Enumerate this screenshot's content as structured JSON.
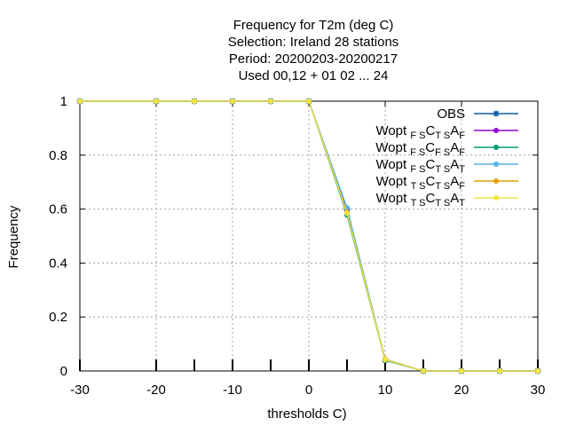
{
  "chart_data": {
    "type": "line",
    "title_lines": [
      "Frequency  for T2m (deg C)",
      "Selection: Ireland      28 stations",
      "Period: 20200203-20200217",
      "Used  00,12  + 01 02 ... 24"
    ],
    "xlabel": "thresholds C)",
    "ylabel": "Frequency",
    "xlim": [
      -30,
      30
    ],
    "ylim": [
      0,
      1
    ],
    "x_ticks": [
      -30,
      -20,
      -10,
      0,
      10,
      20,
      30
    ],
    "x_tick_labels": [
      "-30",
      "-20",
      "-10",
      "0",
      "10",
      "20",
      "30"
    ],
    "y_ticks": [
      0,
      0.2,
      0.4,
      0.6,
      0.8,
      1
    ],
    "y_tick_labels": [
      "0",
      "0.2",
      "0.4",
      "0.6",
      "0.8",
      "1"
    ],
    "grid": true,
    "legend_position": "top-right",
    "x": [
      -30,
      -20,
      -15,
      -10,
      -5,
      0,
      5,
      10,
      15,
      20,
      25,
      30
    ],
    "series": [
      {
        "legend": {
          "main": "OBS",
          "parts": []
        },
        "color": "#0b5fa5",
        "marker": "star",
        "values": [
          1,
          1,
          1,
          1,
          1,
          1,
          0.6,
          0.04,
          0,
          0,
          0,
          0
        ]
      },
      {
        "legend": {
          "main": "Wopt",
          "parts": [
            [
              "C",
              ""
            ],
            [
              "A",
              "F"
            ]
          ],
          "lead_sub": "FS",
          "mid_sub": "TS"
        },
        "color": "#9400d3",
        "marker": "circle",
        "values": [
          1,
          1,
          1,
          1,
          1,
          1,
          0.595,
          0.042,
          0,
          0,
          0,
          0
        ]
      },
      {
        "legend": {
          "main": "Wopt",
          "lead_sub": "FS",
          "mid_sub": "FS",
          "end_sub": "F"
        },
        "color": "#009e73",
        "marker": "circle",
        "values": [
          1,
          1,
          1,
          1,
          1,
          1,
          0.578,
          0.04,
          0,
          0,
          0,
          0
        ]
      },
      {
        "legend": {
          "main": "Wopt",
          "lead_sub": "FS",
          "mid_sub": "TS",
          "end_sub": "T"
        },
        "color": "#56b4e9",
        "marker": "circle",
        "values": [
          1,
          1,
          1,
          1,
          1,
          1,
          0.605,
          0.044,
          0,
          0,
          0,
          0
        ]
      },
      {
        "legend": {
          "main": "Wopt",
          "lead_sub": "TS",
          "mid_sub": "TS",
          "end_sub": "F"
        },
        "color": "#e69f00",
        "marker": "circle",
        "values": [
          1,
          1,
          1,
          1,
          1,
          1,
          0.588,
          0.043,
          0,
          0,
          0,
          0
        ]
      },
      {
        "legend": {
          "main": "Wopt",
          "lead_sub": "TS",
          "mid_sub": "TS",
          "end_sub": "T"
        },
        "color": "#f0e442",
        "marker": "circle",
        "values": [
          1,
          1,
          1,
          1,
          1,
          1,
          0.585,
          0.042,
          0,
          0,
          0,
          0
        ]
      }
    ]
  }
}
